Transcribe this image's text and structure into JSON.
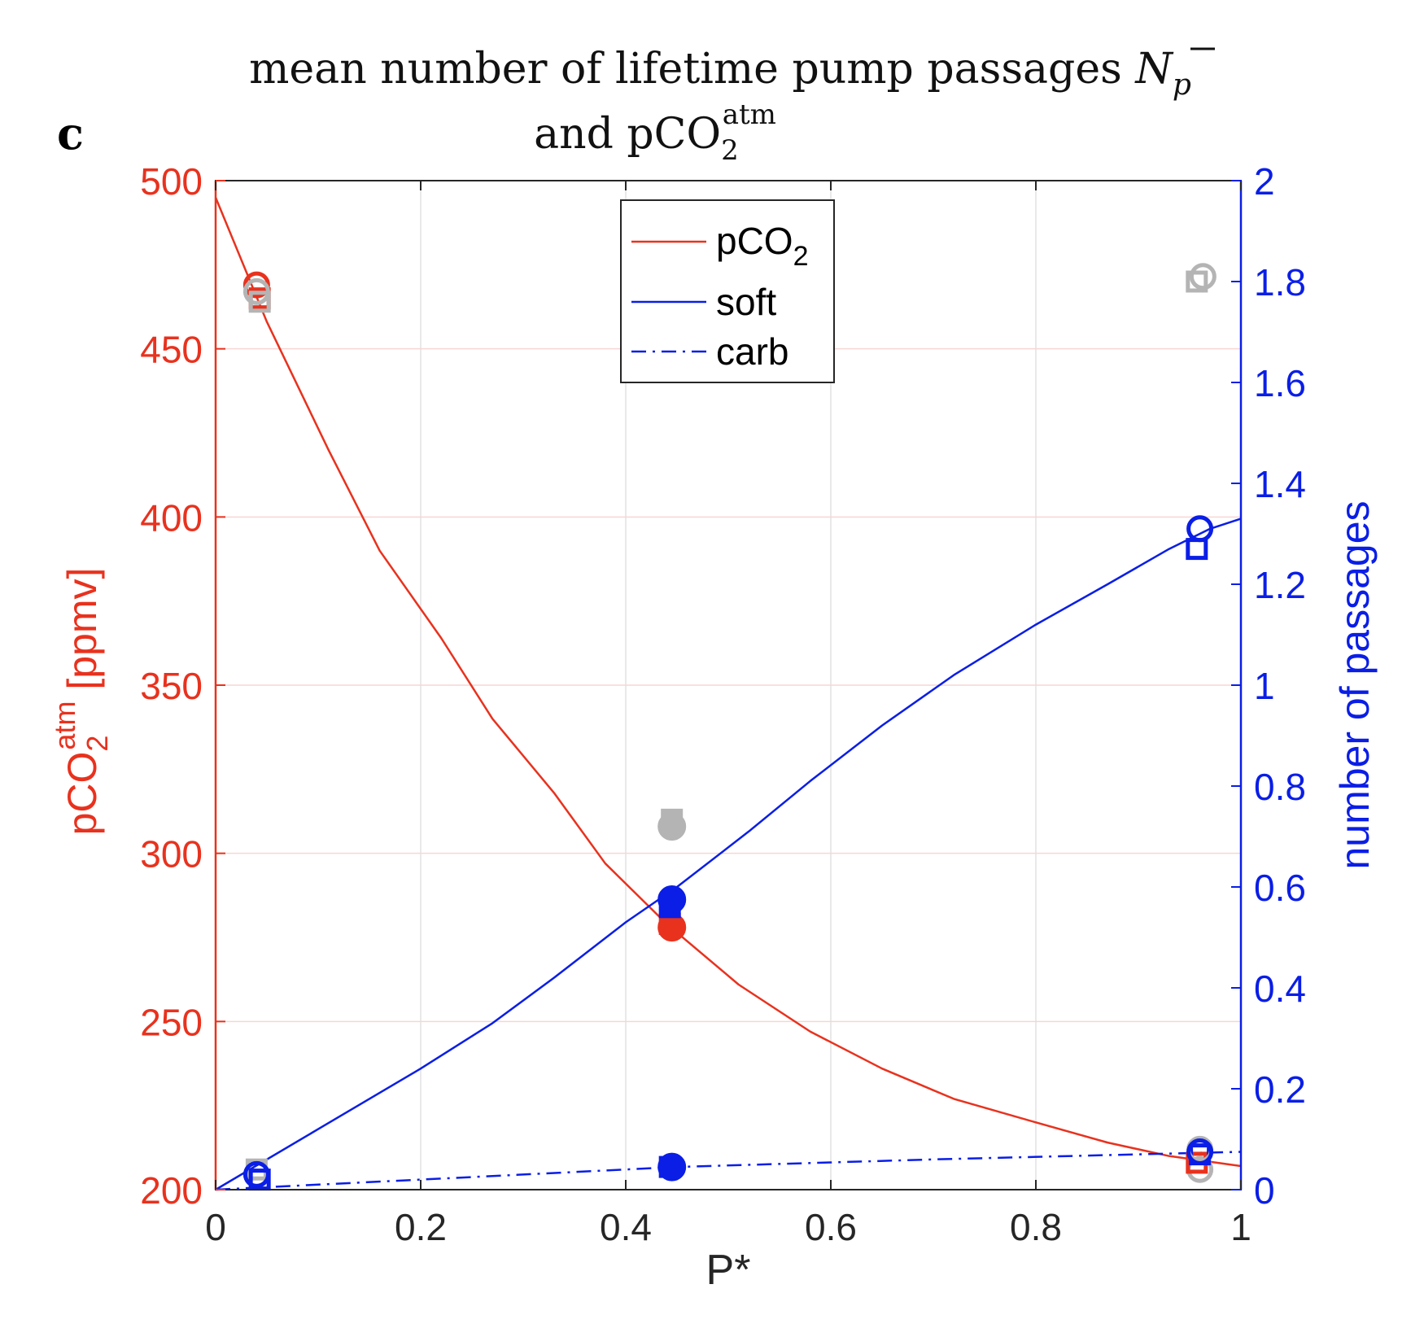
{
  "panel_label": "c",
  "title": {
    "line1_text": "mean number of lifetime pump passages ",
    "line1_symbol": "N",
    "line1_symbol_sub": "p",
    "line2_text": "and pCO",
    "line2_sub": "2",
    "line2_sup": "atm"
  },
  "left_axis_label": {
    "text": "pCO",
    "sub": "2",
    "sup": "atm",
    "unit": " [ppmv]"
  },
  "chart_data": {
    "type": "line",
    "xlabel": "P*",
    "ylabel_right": "number of passages",
    "xlim": [
      0,
      1
    ],
    "ylim_left": [
      200,
      500
    ],
    "ylim_right": [
      0,
      2
    ],
    "x_ticks": [
      "0",
      "0.2",
      "0.4",
      "0.6",
      "0.8",
      "1"
    ],
    "y_left_ticks": [
      "200",
      "250",
      "300",
      "350",
      "400",
      "450",
      "500"
    ],
    "y_right_ticks": [
      "0",
      "0.2",
      "0.4",
      "0.6",
      "0.8",
      "1",
      "1.2",
      "1.4",
      "1.6",
      "1.8",
      "2"
    ],
    "grid": true,
    "legend_position": "top-center",
    "legend": [
      {
        "label": "pCO",
        "sub": "2",
        "style": "solid",
        "color": "#e8321e"
      },
      {
        "label": "soft",
        "style": "solid",
        "color": "#0a1ee6"
      },
      {
        "label": "carb",
        "style": "dash-dot",
        "color": "#0a1ee6"
      }
    ],
    "colors": {
      "pco2": "#e8321e",
      "passages": "#0a1ee6",
      "gray_markers": "#b4b4b4"
    },
    "series": [
      {
        "name": "pCO2",
        "axis": "left",
        "style": "solid",
        "x": [
          0,
          0.05,
          0.11,
          0.16,
          0.22,
          0.27,
          0.33,
          0.38,
          0.44,
          0.51,
          0.58,
          0.65,
          0.72,
          0.8,
          0.87,
          0.93,
          1.0
        ],
        "y": [
          495,
          458,
          420,
          390,
          364,
          340,
          318,
          297,
          279,
          261,
          247,
          236,
          227,
          220,
          214,
          210,
          207
        ]
      },
      {
        "name": "soft",
        "axis": "right",
        "style": "solid",
        "x": [
          0,
          0.1,
          0.2,
          0.27,
          0.33,
          0.4,
          0.45,
          0.52,
          0.58,
          0.65,
          0.72,
          0.8,
          0.87,
          0.93,
          0.97,
          1.0
        ],
        "y": [
          0,
          0.12,
          0.24,
          0.33,
          0.42,
          0.53,
          0.6,
          0.71,
          0.81,
          0.92,
          1.02,
          1.12,
          1.2,
          1.27,
          1.31,
          1.33
        ]
      },
      {
        "name": "carb",
        "axis": "right",
        "style": "dash-dot",
        "x": [
          0,
          0.2,
          0.45,
          0.7,
          0.9,
          1.0
        ],
        "y": [
          0,
          0.02,
          0.045,
          0.06,
          0.07,
          0.075
        ]
      }
    ],
    "markers": [
      {
        "x": 0.04,
        "y": 469,
        "axis": "left",
        "shape": "circle",
        "fill": false,
        "color": "#e8321e"
      },
      {
        "x": 0.043,
        "y": 465,
        "axis": "left",
        "shape": "square",
        "fill": false,
        "color": "#e8321e"
      },
      {
        "x": 0.043,
        "y": 464,
        "axis": "left",
        "shape": "square",
        "fill": false,
        "color": "#b4b4b4"
      },
      {
        "x": 0.04,
        "y": 467,
        "axis": "left",
        "shape": "circle",
        "fill": false,
        "color": "#b4b4b4"
      },
      {
        "x": 0.04,
        "y": 0.04,
        "axis": "right",
        "shape": "square",
        "fill": false,
        "color": "#b4b4b4"
      },
      {
        "x": 0.04,
        "y": 0.03,
        "axis": "right",
        "shape": "circle",
        "fill": false,
        "color": "#0a1ee6"
      },
      {
        "x": 0.043,
        "y": 0.02,
        "axis": "right",
        "shape": "square",
        "fill": false,
        "color": "#0a1ee6"
      },
      {
        "x": 0.445,
        "y": 310,
        "axis": "left",
        "shape": "square",
        "fill": true,
        "color": "#b4b4b4"
      },
      {
        "x": 0.445,
        "y": 308,
        "axis": "left",
        "shape": "circle",
        "fill": true,
        "color": "#b4b4b4"
      },
      {
        "x": 0.443,
        "y": 279,
        "axis": "left",
        "shape": "square",
        "fill": true,
        "color": "#e8321e"
      },
      {
        "x": 0.445,
        "y": 278,
        "axis": "left",
        "shape": "circle",
        "fill": true,
        "color": "#e8321e"
      },
      {
        "x": 0.443,
        "y": 0.56,
        "axis": "right",
        "shape": "square",
        "fill": true,
        "color": "#0a1ee6"
      },
      {
        "x": 0.445,
        "y": 0.575,
        "axis": "right",
        "shape": "circle",
        "fill": true,
        "color": "#0a1ee6"
      },
      {
        "x": 0.443,
        "y": 0.045,
        "axis": "right",
        "shape": "square",
        "fill": true,
        "color": "#0a1ee6"
      },
      {
        "x": 0.445,
        "y": 0.045,
        "axis": "right",
        "shape": "circle",
        "fill": true,
        "color": "#0a1ee6"
      },
      {
        "x": 0.957,
        "y": 1.8,
        "axis": "right",
        "shape": "square",
        "fill": false,
        "color": "#b4b4b4"
      },
      {
        "x": 0.963,
        "y": 1.81,
        "axis": "right",
        "shape": "circle",
        "fill": false,
        "color": "#b4b4b4"
      },
      {
        "x": 0.957,
        "y": 1.27,
        "axis": "right",
        "shape": "square",
        "fill": false,
        "color": "#0a1ee6"
      },
      {
        "x": 0.96,
        "y": 1.31,
        "axis": "right",
        "shape": "circle",
        "fill": false,
        "color": "#0a1ee6"
      },
      {
        "x": 0.96,
        "y": 206,
        "axis": "left",
        "shape": "circle",
        "fill": false,
        "color": "#b4b4b4"
      },
      {
        "x": 0.957,
        "y": 208,
        "axis": "left",
        "shape": "square",
        "fill": false,
        "color": "#e8321e"
      },
      {
        "x": 0.96,
        "y": 0.07,
        "axis": "right",
        "shape": "square",
        "fill": false,
        "color": "#0a1ee6"
      },
      {
        "x": 0.96,
        "y": 0.08,
        "axis": "right",
        "shape": "circle",
        "fill": false,
        "color": "#b4b4b4"
      },
      {
        "x": 0.96,
        "y": 0.075,
        "axis": "right",
        "shape": "circle",
        "fill": false,
        "color": "#0a1ee6"
      }
    ]
  }
}
